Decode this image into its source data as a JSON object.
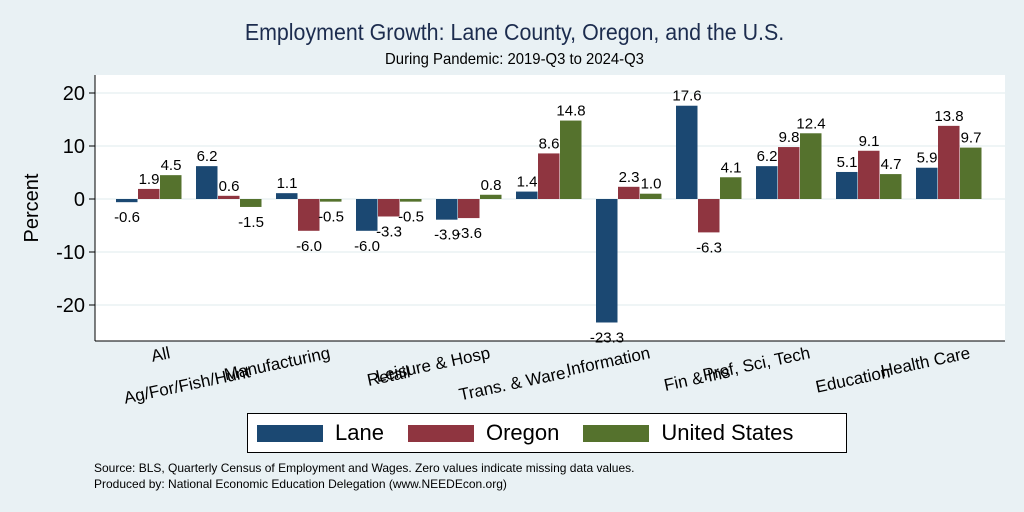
{
  "chart_data": {
    "type": "bar",
    "title": "Employment Growth: Lane County, Oregon, and the U.S.",
    "subtitle": "During Pandemic: 2019-Q3 to 2024-Q3",
    "xlabel": "",
    "ylabel": "Percent",
    "ylim": [
      -25,
      23
    ],
    "yticks": [
      20,
      10,
      0,
      -10,
      -20
    ],
    "grid": true,
    "legend_position": "bottom",
    "categories": [
      "All",
      "Ag/For/Fish/Hunt",
      "Manufacturing",
      "Retail",
      "Leisure & Hosp",
      "Trans. & Ware.",
      "Information",
      "Fin & Ins",
      "Prof, Sci, Tech",
      "Education",
      "Health Care"
    ],
    "series": [
      {
        "name": "Lane",
        "color": "#1b4872",
        "values": [
          -0.6,
          6.2,
          1.1,
          -6.0,
          -3.9,
          1.4,
          -23.3,
          17.6,
          6.2,
          5.1,
          5.9
        ]
      },
      {
        "name": "Oregon",
        "color": "#8f3540",
        "values": [
          1.9,
          0.6,
          -6.0,
          -3.3,
          -3.6,
          8.6,
          2.3,
          -6.3,
          9.8,
          9.1,
          13.8
        ]
      },
      {
        "name": "United States",
        "color": "#55722d",
        "values": [
          4.5,
          -1.5,
          -0.5,
          -0.5,
          0.8,
          14.8,
          1.0,
          4.1,
          12.4,
          4.7,
          9.7
        ]
      }
    ]
  },
  "footer": {
    "source": "Source: BLS, Quarterly Census of Employment and Wages. Zero values indicate missing data values.",
    "produced_by": "Produced by: National Economic Education Delegation (www.NEEDEcon.org)"
  }
}
